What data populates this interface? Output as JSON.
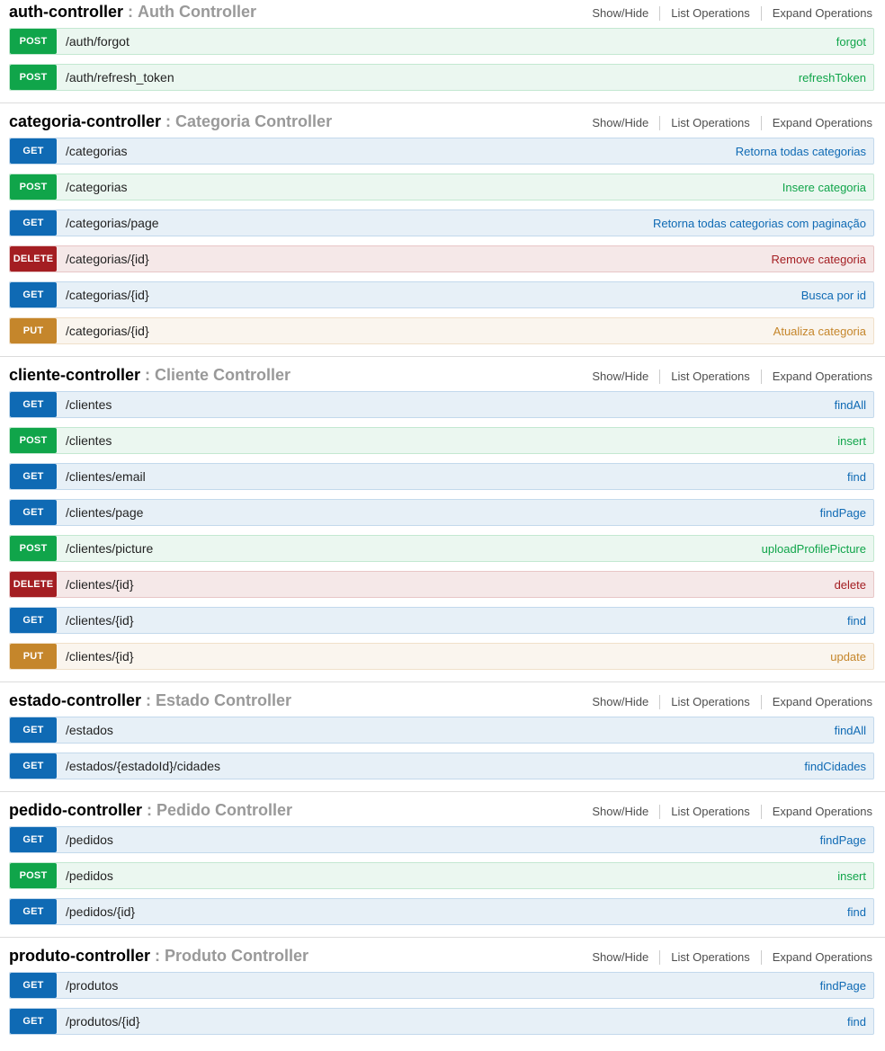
{
  "separator": ":",
  "options": [
    "Show/Hide",
    "List Operations",
    "Expand Operations"
  ],
  "option_names": [
    "show-hide-link",
    "list-operations-link",
    "expand-operations-link"
  ],
  "method_colors": {
    "GET": {
      "accent": "#0f6ab4",
      "row_bg": "#e7f0f7",
      "border": "#c3d9ec"
    },
    "POST": {
      "accent": "#10a54a",
      "row_bg": "#ebf7f0",
      "border": "#c3e8d1"
    },
    "DELETE": {
      "accent": "#a41e22",
      "row_bg": "#f5e8e8",
      "border": "#e8c6c7"
    },
    "PUT": {
      "accent": "#c5862b",
      "row_bg": "#faf5ee",
      "border": "#f0e0ca"
    }
  },
  "sections": [
    {
      "name": "auth-controller",
      "description": "Auth Controller",
      "operations": [
        {
          "method": "POST",
          "path": "/auth/forgot",
          "nickname": "forgot"
        },
        {
          "method": "POST",
          "path": "/auth/refresh_token",
          "nickname": "refreshToken"
        }
      ]
    },
    {
      "name": "categoria-controller",
      "description": "Categoria Controller",
      "operations": [
        {
          "method": "GET",
          "path": "/categorias",
          "nickname": "Retorna todas categorias"
        },
        {
          "method": "POST",
          "path": "/categorias",
          "nickname": "Insere categoria"
        },
        {
          "method": "GET",
          "path": "/categorias/page",
          "nickname": "Retorna todas categorias com paginação"
        },
        {
          "method": "DELETE",
          "path": "/categorias/{id}",
          "nickname": "Remove categoria"
        },
        {
          "method": "GET",
          "path": "/categorias/{id}",
          "nickname": "Busca por id"
        },
        {
          "method": "PUT",
          "path": "/categorias/{id}",
          "nickname": "Atualiza categoria"
        }
      ]
    },
    {
      "name": "cliente-controller",
      "description": "Cliente Controller",
      "operations": [
        {
          "method": "GET",
          "path": "/clientes",
          "nickname": "findAll"
        },
        {
          "method": "POST",
          "path": "/clientes",
          "nickname": "insert"
        },
        {
          "method": "GET",
          "path": "/clientes/email",
          "nickname": "find"
        },
        {
          "method": "GET",
          "path": "/clientes/page",
          "nickname": "findPage"
        },
        {
          "method": "POST",
          "path": "/clientes/picture",
          "nickname": "uploadProfilePicture"
        },
        {
          "method": "DELETE",
          "path": "/clientes/{id}",
          "nickname": "delete"
        },
        {
          "method": "GET",
          "path": "/clientes/{id}",
          "nickname": "find"
        },
        {
          "method": "PUT",
          "path": "/clientes/{id}",
          "nickname": "update"
        }
      ]
    },
    {
      "name": "estado-controller",
      "description": "Estado Controller",
      "operations": [
        {
          "method": "GET",
          "path": "/estados",
          "nickname": "findAll"
        },
        {
          "method": "GET",
          "path": "/estados/{estadoId}/cidades",
          "nickname": "findCidades"
        }
      ]
    },
    {
      "name": "pedido-controller",
      "description": "Pedido Controller",
      "operations": [
        {
          "method": "GET",
          "path": "/pedidos",
          "nickname": "findPage"
        },
        {
          "method": "POST",
          "path": "/pedidos",
          "nickname": "insert"
        },
        {
          "method": "GET",
          "path": "/pedidos/{id}",
          "nickname": "find"
        }
      ]
    },
    {
      "name": "produto-controller",
      "description": "Produto Controller",
      "operations": [
        {
          "method": "GET",
          "path": "/produtos",
          "nickname": "findPage"
        },
        {
          "method": "GET",
          "path": "/produtos/{id}",
          "nickname": "find"
        }
      ]
    }
  ]
}
